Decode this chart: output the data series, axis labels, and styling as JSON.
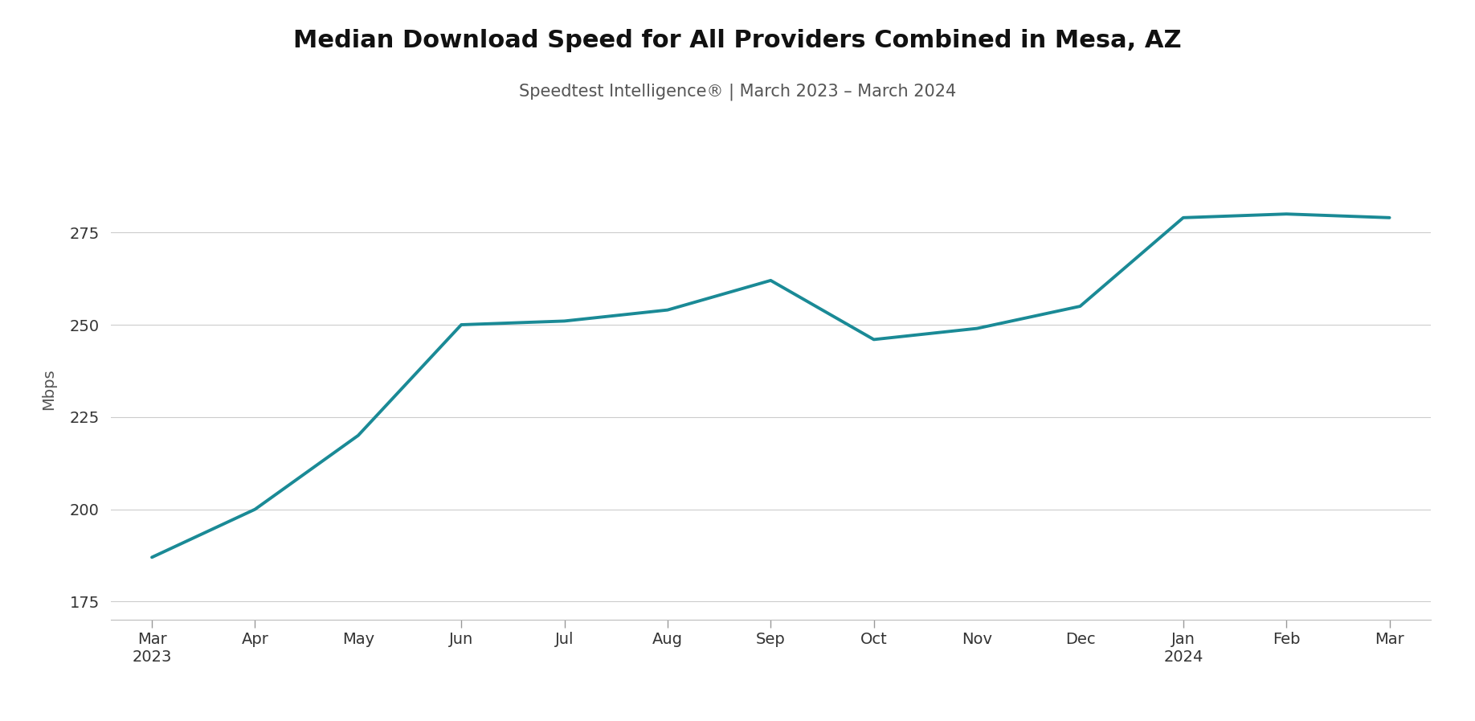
{
  "title": "Median Download Speed for All Providers Combined in Mesa, AZ",
  "subtitle": "Speedtest Intelligence® | March 2023 – March 2024",
  "ylabel": "Mbps",
  "line_color": "#1a8a96",
  "line_width": 2.8,
  "background_color": "#ffffff",
  "x_labels": [
    "Mar\n2023",
    "Apr",
    "May",
    "Jun",
    "Jul",
    "Aug",
    "Sep",
    "Oct",
    "Nov",
    "Dec",
    "Jan\n2024",
    "Feb",
    "Mar"
  ],
  "y_values": [
    187,
    200,
    220,
    250,
    251,
    254,
    262,
    246,
    249,
    255,
    279,
    280,
    279
  ],
  "ylim": [
    170,
    295
  ],
  "yticks": [
    175,
    200,
    225,
    250,
    275
  ],
  "grid_color": "#cccccc",
  "title_fontsize": 22,
  "subtitle_fontsize": 15,
  "tick_fontsize": 14,
  "ylabel_fontsize": 14
}
